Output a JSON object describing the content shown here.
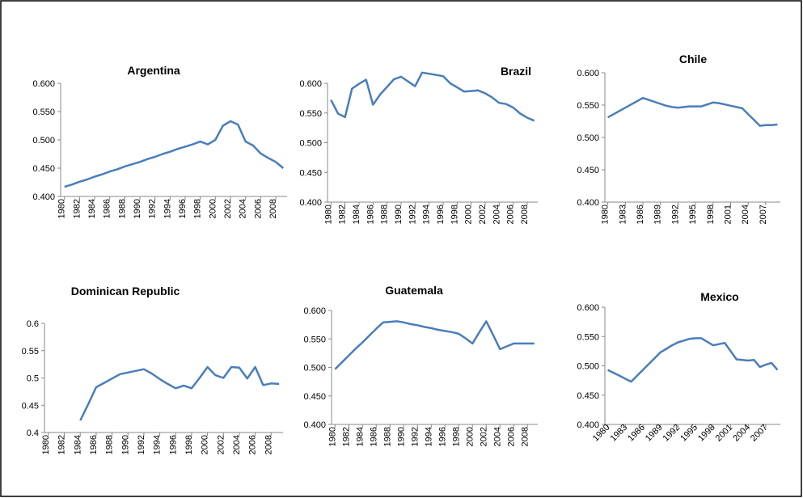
{
  "chart_data": [
    {
      "type": "line",
      "title": "Argentina",
      "color": "#4a7ebb",
      "x": [
        1980,
        1981,
        1982,
        1983,
        1984,
        1985,
        1986,
        1987,
        1988,
        1989,
        1990,
        1991,
        1992,
        1993,
        1994,
        1995,
        1996,
        1997,
        1998,
        1999,
        2000,
        2001,
        2002,
        2003,
        2004,
        2005,
        2006,
        2007,
        2008,
        2009
      ],
      "values": [
        0.417,
        0.421,
        0.426,
        0.43,
        0.435,
        0.439,
        0.444,
        0.448,
        0.453,
        0.457,
        0.461,
        0.466,
        0.47,
        0.475,
        0.479,
        0.484,
        0.488,
        0.492,
        0.497,
        0.492,
        0.5,
        0.525,
        0.533,
        0.527,
        0.497,
        0.49,
        0.476,
        0.468,
        0.461,
        0.45
      ],
      "xlim": [
        1979.5,
        2009.5
      ],
      "xticks": [
        1980,
        1982,
        1984,
        1986,
        1988,
        1990,
        1992,
        1994,
        1996,
        1998,
        2000,
        2002,
        2004,
        2006,
        2008
      ],
      "ylim": [
        0.4,
        0.6
      ],
      "yticks": [
        {
          "value": 0.4,
          "label": "0.400"
        },
        {
          "value": 0.45,
          "label": "0.450"
        },
        {
          "value": 0.5,
          "label": "0.500"
        },
        {
          "value": 0.55,
          "label": "0.550"
        },
        {
          "value": 0.6,
          "label": "0.600"
        }
      ]
    },
    {
      "type": "line",
      "title": "Brazil",
      "color": "#4a7ebb",
      "x": [
        1980,
        1981,
        1982,
        1983,
        1984,
        1985,
        1986,
        1987,
        1988,
        1989,
        1990,
        1991,
        1992,
        1993,
        1994,
        1995,
        1996,
        1997,
        1998,
        1999,
        2000,
        2001,
        2002,
        2003,
        2004,
        2005,
        2006,
        2007,
        2008,
        2009
      ],
      "values": [
        0.572,
        0.549,
        0.543,
        0.591,
        0.599,
        0.606,
        0.564,
        0.581,
        0.594,
        0.607,
        0.611,
        0.603,
        0.595,
        0.618,
        0.616,
        0.614,
        0.612,
        0.6,
        0.593,
        0.586,
        0.587,
        0.588,
        0.583,
        0.576,
        0.567,
        0.565,
        0.559,
        0.549,
        0.542,
        0.537
      ],
      "xlim": [
        1979.5,
        2009.5
      ],
      "xticks": [
        1980,
        1982,
        1984,
        1986,
        1988,
        1990,
        1992,
        1994,
        1996,
        1998,
        2000,
        2002,
        2004,
        2006,
        2008
      ],
      "ylim": [
        0.4,
        0.6
      ],
      "yticks": [
        {
          "value": 0.4,
          "label": "0.400"
        },
        {
          "value": 0.45,
          "label": "0.450"
        },
        {
          "value": 0.5,
          "label": "0.500"
        },
        {
          "value": 0.55,
          "label": "0.550"
        },
        {
          "value": 0.6,
          "label": "0.600"
        }
      ]
    },
    {
      "type": "line",
      "title": "Chile",
      "color": "#4a7ebb",
      "x": [
        1980,
        1981,
        1982,
        1983,
        1984,
        1985,
        1986,
        1987,
        1988,
        1989,
        1990,
        1991,
        1992,
        1993,
        1994,
        1995,
        1996,
        1997,
        1998,
        1999,
        2000,
        2001,
        2002,
        2003,
        2004,
        2005,
        2006,
        2007,
        2008,
        2009
      ],
      "values": [
        0.531,
        0.536,
        0.541,
        0.546,
        0.551,
        0.556,
        0.561,
        0.558,
        0.555,
        0.552,
        0.549,
        0.547,
        0.546,
        0.547,
        0.548,
        0.548,
        0.548,
        0.551,
        0.554,
        0.553,
        0.551,
        0.549,
        0.547,
        0.545,
        0.536,
        0.527,
        0.518,
        0.519,
        0.519,
        0.52
      ],
      "xlim": [
        1979.5,
        2009.5
      ],
      "xticks": [
        1980,
        1983,
        1986,
        1989,
        1992,
        1995,
        1998,
        2001,
        2004,
        2007
      ],
      "ylim": [
        0.4,
        0.6
      ],
      "yticks": [
        {
          "value": 0.4,
          "label": "0.400"
        },
        {
          "value": 0.45,
          "label": "0.450"
        },
        {
          "value": 0.5,
          "label": "0.500"
        },
        {
          "value": 0.55,
          "label": "0.550"
        },
        {
          "value": 0.6,
          "label": "0.600"
        }
      ]
    },
    {
      "type": "line",
      "title": "Dominican Republic",
      "color": "#4a7ebb",
      "x": [
        1980,
        1981,
        1982,
        1983,
        1984,
        1985,
        1986,
        1987,
        1988,
        1989,
        1990,
        1991,
        1992,
        1993,
        1994,
        1995,
        1996,
        1997,
        1998,
        1999,
        2000,
        2001,
        2002,
        2003,
        2004,
        2005,
        2006,
        2007,
        2008,
        2009
      ],
      "values": [
        null,
        null,
        null,
        null,
        0.422,
        0.452,
        0.483,
        0.491,
        0.499,
        0.507,
        0.51,
        0.513,
        0.516,
        0.508,
        0.498,
        0.489,
        0.481,
        0.486,
        0.481,
        0.5,
        0.52,
        0.505,
        0.5,
        0.52,
        0.519,
        0.499,
        0.52,
        0.487,
        0.49,
        0.489
      ],
      "xlim": [
        1979.5,
        2009.5
      ],
      "xticks": [
        1980,
        1982,
        1984,
        1986,
        1988,
        1990,
        1992,
        1994,
        1996,
        1998,
        2000,
        2002,
        2004,
        2006,
        2008
      ],
      "ylim": [
        0.4,
        0.6
      ],
      "yticks": [
        0.4,
        0.45,
        0.5,
        0.55,
        0.6
      ]
    },
    {
      "type": "line",
      "title": "Guatemala",
      "color": "#4a7ebb",
      "x": [
        1980,
        1981,
        1982,
        1983,
        1984,
        1985,
        1986,
        1987,
        1988,
        1989,
        1990,
        1991,
        1992,
        1993,
        1994,
        1995,
        1996,
        1997,
        1998,
        1999,
        2000,
        2001,
        2002,
        2003,
        2004,
        2005,
        2006,
        2007,
        2008,
        2009
      ],
      "values": [
        0.497,
        0.509,
        0.521,
        0.533,
        0.544,
        0.556,
        0.568,
        0.579,
        0.58,
        0.581,
        0.579,
        0.576,
        0.574,
        0.571,
        0.569,
        0.566,
        0.564,
        0.562,
        0.559,
        0.551,
        0.542,
        0.562,
        0.581,
        0.557,
        0.532,
        0.537,
        0.542,
        0.542,
        0.542,
        0.542
      ],
      "xlim": [
        1979.5,
        2009.5
      ],
      "xticks": [
        1980,
        1982,
        1984,
        1986,
        1988,
        1990,
        1992,
        1994,
        1996,
        1998,
        2000,
        2002,
        2004,
        2006,
        2008
      ],
      "ylim": [
        0.4,
        0.6
      ],
      "yticks": [
        {
          "value": 0.4,
          "label": "0.400"
        },
        {
          "value": 0.45,
          "label": "0.450"
        },
        {
          "value": 0.5,
          "label": "0.500"
        },
        {
          "value": 0.55,
          "label": "0.550"
        },
        {
          "value": 0.6,
          "label": "0.600"
        }
      ]
    },
    {
      "type": "line",
      "title": "Mexico",
      "color": "#4a7ebb",
      "x": [
        1980,
        1981,
        1982,
        1983,
        1984,
        1985,
        1986,
        1987,
        1988,
        1989,
        1990,
        1991,
        1992,
        1993,
        1994,
        1995,
        1996,
        1997,
        1998,
        1999,
        2000,
        2001,
        2002,
        2003,
        2004,
        2005,
        2006,
        2007,
        2008,
        2009
      ],
      "values": [
        0.493,
        0.488,
        0.483,
        0.478,
        0.473,
        0.483,
        0.493,
        0.503,
        0.513,
        0.523,
        0.529,
        0.535,
        0.54,
        0.543,
        0.546,
        0.547,
        0.547,
        0.541,
        0.535,
        0.537,
        0.539,
        0.525,
        0.511,
        0.51,
        0.509,
        0.51,
        0.498,
        0.502,
        0.505,
        0.493
      ],
      "xlim": [
        1979.5,
        2009.5
      ],
      "xticks": [
        1980,
        1983,
        1986,
        1989,
        1992,
        1995,
        1998,
        2001,
        2004,
        2007
      ],
      "ylim": [
        0.4,
        0.6
      ],
      "yticks": [
        {
          "value": 0.4,
          "label": "0.400"
        },
        {
          "value": 0.45,
          "label": "0.450"
        },
        {
          "value": 0.5,
          "label": "0.500"
        },
        {
          "value": 0.55,
          "label": "0.550"
        },
        {
          "value": 0.6,
          "label": "0.600"
        }
      ]
    }
  ]
}
